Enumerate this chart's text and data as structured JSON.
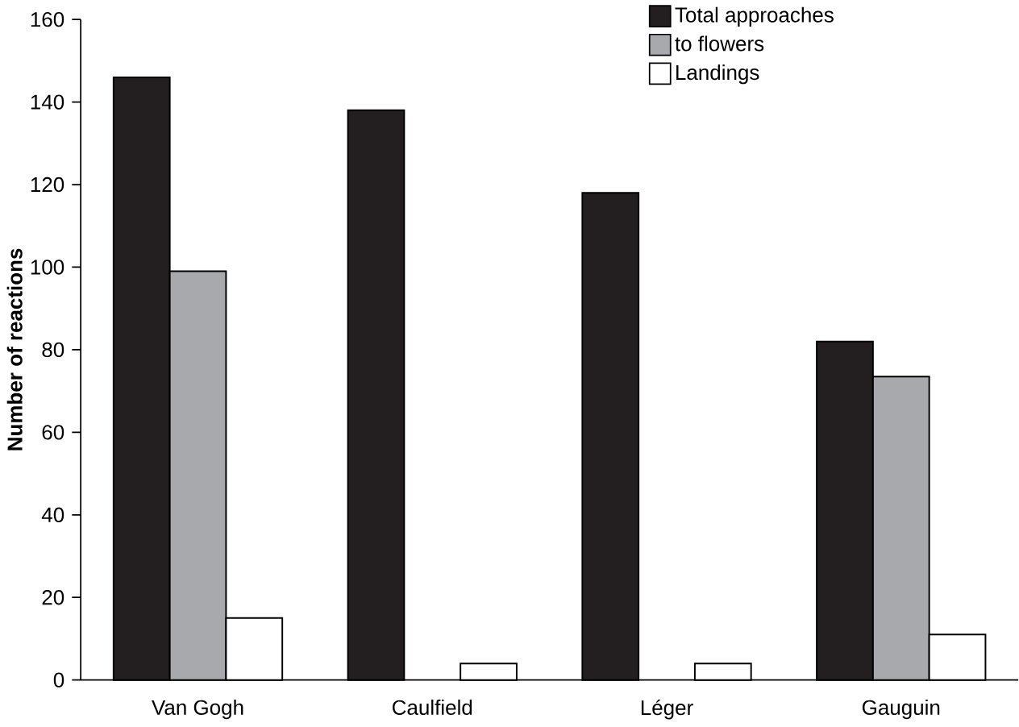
{
  "chart_data": {
    "type": "bar",
    "ylabel": "Number of reactions",
    "categories": [
      "Van Gogh",
      "Caulfield",
      "Léger",
      "Gauguin"
    ],
    "series": [
      {
        "name": "Total approaches",
        "color": "#231f20",
        "values": [
          146,
          138,
          118,
          82
        ]
      },
      {
        "name": "to flowers",
        "color": "#a7a9ac",
        "values": [
          99,
          null,
          null,
          73.5
        ]
      },
      {
        "name": "Landings",
        "color": "#ffffff",
        "values": [
          15,
          4,
          4,
          11
        ]
      }
    ],
    "ylim": [
      0,
      160
    ],
    "yticks": [
      0,
      20,
      40,
      60,
      80,
      100,
      120,
      140,
      160
    ],
    "legend": "top right",
    "grid": false
  }
}
